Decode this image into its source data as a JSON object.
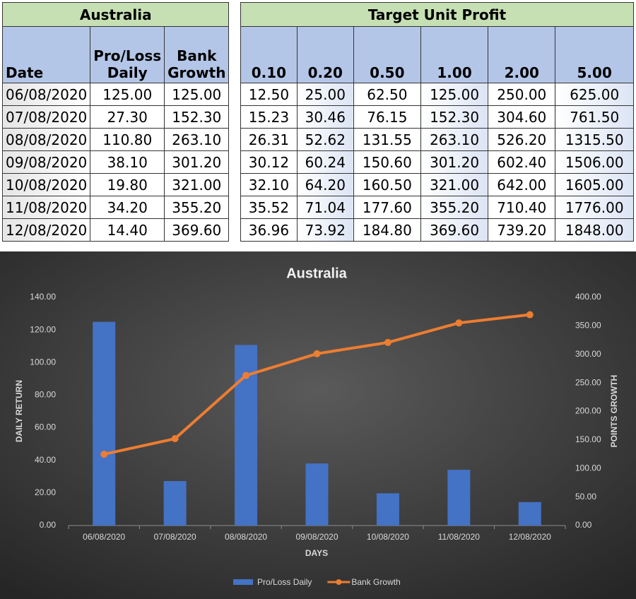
{
  "tables": [
    {
      "title": "Australia",
      "headers": [
        "Date",
        "Pro/Loss Daily",
        "Bank Growth"
      ],
      "rows": [
        [
          "06/08/2020",
          "125.00",
          "125.00"
        ],
        [
          "07/08/2020",
          "27.30",
          "152.30"
        ],
        [
          "08/08/2020",
          "110.80",
          "263.10"
        ],
        [
          "09/08/2020",
          "38.10",
          "301.20"
        ],
        [
          "10/08/2020",
          "19.80",
          "321.00"
        ],
        [
          "11/08/2020",
          "34.20",
          "355.20"
        ],
        [
          "12/08/2020",
          "14.40",
          "369.60"
        ]
      ]
    },
    {
      "title": "Target Unit Profit",
      "headers": [
        "0.10",
        "0.20",
        "0.50",
        "1.00",
        "2.00",
        "5.00"
      ],
      "rows": [
        [
          "12.50",
          "25.00",
          "62.50",
          "125.00",
          "250.00",
          "625.00"
        ],
        [
          "15.23",
          "30.46",
          "76.15",
          "152.30",
          "304.60",
          "761.50"
        ],
        [
          "26.31",
          "52.62",
          "131.55",
          "263.10",
          "526.20",
          "1315.50"
        ],
        [
          "30.12",
          "60.24",
          "150.60",
          "301.20",
          "602.40",
          "1506.00"
        ],
        [
          "32.10",
          "64.20",
          "160.50",
          "321.00",
          "642.00",
          "1605.00"
        ],
        [
          "35.52",
          "71.04",
          "177.60",
          "355.20",
          "710.40",
          "1776.00"
        ],
        [
          "36.96",
          "73.92",
          "184.80",
          "369.60",
          "739.20",
          "1848.00"
        ]
      ]
    }
  ],
  "chart_data": {
    "type": "combo",
    "title": "Australia",
    "x_label": "DAYS",
    "y_label": "DAILY RETURN",
    "y2_label": "POINTS GROWTH",
    "categories": [
      "06/08/2020",
      "07/08/2020",
      "08/08/2020",
      "09/08/2020",
      "10/08/2020",
      "11/08/2020",
      "12/08/2020"
    ],
    "series": [
      {
        "name": "Pro/Loss Daily",
        "type": "bar",
        "color": "#4472c4",
        "values": [
          125,
          27.3,
          110.8,
          38.1,
          19.8,
          34.2,
          14.4
        ]
      },
      {
        "name": "Bank Growth",
        "type": "line",
        "color": "#ed7d31",
        "axis": "y2",
        "values": [
          125,
          152.3,
          263.1,
          301.2,
          321,
          355.2,
          369.6
        ]
      }
    ],
    "ylim": [
      0,
      140
    ],
    "yticks": [
      {
        "value": 0,
        "label": "0.00"
      },
      {
        "value": 20,
        "label": "20.00"
      },
      {
        "value": 40,
        "label": "40.00"
      },
      {
        "value": 60,
        "label": "60.00"
      },
      {
        "value": 80,
        "label": "80.00"
      },
      {
        "value": 100,
        "label": "100.00"
      },
      {
        "value": 120,
        "label": "120.00"
      },
      {
        "value": 140,
        "label": "140.00"
      }
    ],
    "y2lim": [
      0,
      400
    ],
    "y2ticks": [
      {
        "value": 0,
        "label": "0.00"
      },
      {
        "value": 50,
        "label": "50.00"
      },
      {
        "value": 100,
        "label": "100.00"
      },
      {
        "value": 150,
        "label": "150.00"
      },
      {
        "value": 200,
        "label": "200.00"
      },
      {
        "value": 250,
        "label": "250.00"
      },
      {
        "value": 300,
        "label": "300.00"
      },
      {
        "value": 350,
        "label": "350.00"
      },
      {
        "value": 400,
        "label": "400.00"
      }
    ],
    "legend": "bottom",
    "grid": false
  }
}
